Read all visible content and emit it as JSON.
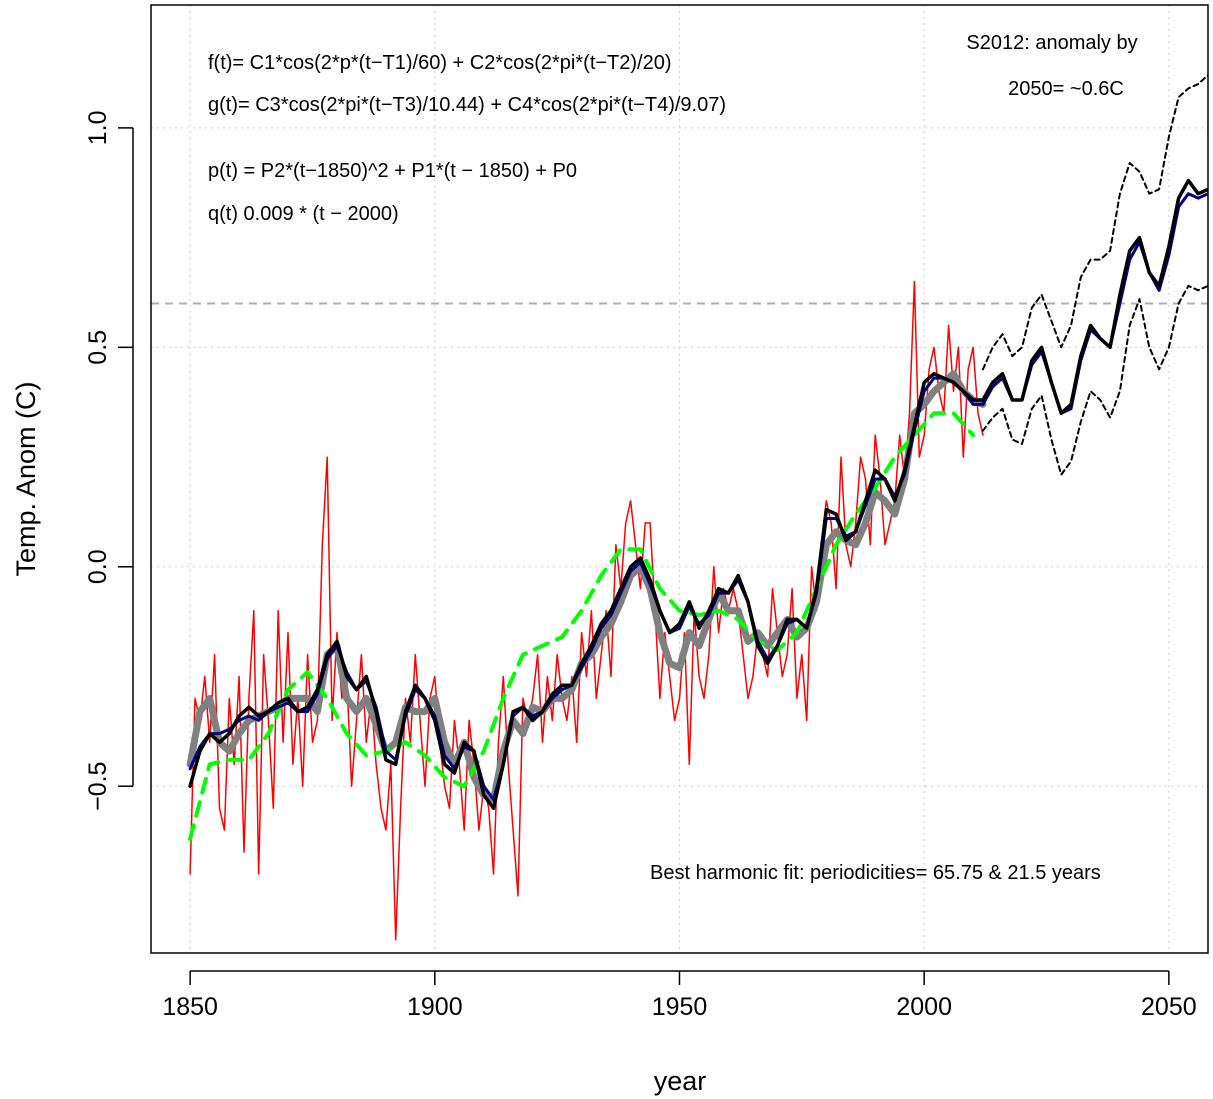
{
  "chart_data": {
    "type": "line",
    "xlabel": "year",
    "ylabel": "Temp. Anom (C)",
    "xlim": [
      1842,
      2058
    ],
    "ylim": [
      -0.88,
      1.28
    ],
    "xticks": [
      1850,
      1900,
      1950,
      2000,
      2050
    ],
    "yticks": [
      {
        "value": -0.5,
        "label": "−0.5"
      },
      {
        "value": 0,
        "label": "0.0"
      },
      {
        "value": 0.5,
        "label": "0.5"
      },
      {
        "value": 1,
        "label": "1.0"
      }
    ],
    "grid": true,
    "reference_line": 0.6,
    "annotations": [
      "f(t)= C1*cos(2*p*(t−T1)/60) + C2*cos(2*pi*(t−T2)/20)",
      "g(t)= C3*cos(2*pi*(t−T3)/10.44) + C4*cos(2*pi*(t−T4)/9.07)",
      "p(t) = P2*(t−1850)^2 + P1*(t − 1850) + P0",
      "q(t) 0.009 * (t − 2000)",
      "S2012: anomaly by",
      "2050= ~0.6C",
      "Best harmonic fit: periodicities= 65.75 & 21.5 years"
    ],
    "series": [
      {
        "color": "#ff0000",
        "dash": false,
        "x": [
          1850,
          1851,
          1852,
          1853,
          1854,
          1855,
          1856,
          1857,
          1858,
          1859,
          1860,
          1861,
          1862,
          1863,
          1864,
          1865,
          1866,
          1867,
          1868,
          1869,
          1870,
          1871,
          1872,
          1873,
          1874,
          1875,
          1876,
          1877,
          1878,
          1879,
          1880,
          1881,
          1882,
          1883,
          1884,
          1885,
          1886,
          1887,
          1888,
          1889,
          1890,
          1891,
          1892,
          1893,
          1894,
          1895,
          1896,
          1897,
          1898,
          1899,
          1900,
          1901,
          1902,
          1903,
          1904,
          1905,
          1906,
          1907,
          1908,
          1909,
          1910,
          1911,
          1912,
          1913,
          1914,
          1915,
          1916,
          1917,
          1918,
          1919,
          1920,
          1921,
          1922,
          1923,
          1924,
          1925,
          1926,
          1927,
          1928,
          1929,
          1930,
          1931,
          1932,
          1933,
          1934,
          1935,
          1936,
          1937,
          1938,
          1939,
          1940,
          1941,
          1942,
          1943,
          1944,
          1945,
          1946,
          1947,
          1948,
          1949,
          1950,
          1951,
          1952,
          1953,
          1954,
          1955,
          1956,
          1957,
          1958,
          1959,
          1960,
          1961,
          1962,
          1963,
          1964,
          1965,
          1966,
          1967,
          1968,
          1969,
          1970,
          1971,
          1972,
          1973,
          1974,
          1975,
          1976,
          1977,
          1978,
          1979,
          1980,
          1981,
          1982,
          1983,
          1984,
          1985,
          1986,
          1987,
          1988,
          1989,
          1990,
          1991,
          1992,
          1993,
          1994,
          1995,
          1996,
          1997,
          1998,
          1999,
          2000,
          2001,
          2002,
          2003,
          2004,
          2005,
          2006,
          2007,
          2008,
          2009,
          2010,
          2011,
          2012
        ],
        "values": [
          -0.7,
          -0.3,
          -0.35,
          -0.25,
          -0.4,
          -0.2,
          -0.55,
          -0.6,
          -0.3,
          -0.45,
          -0.25,
          -0.65,
          -0.3,
          -0.1,
          -0.7,
          -0.2,
          -0.35,
          -0.55,
          -0.1,
          -0.4,
          -0.15,
          -0.45,
          -0.3,
          -0.5,
          -0.2,
          -0.4,
          -0.35,
          0.05,
          0.25,
          -0.35,
          -0.15,
          -0.3,
          -0.25,
          -0.5,
          -0.35,
          -0.2,
          -0.4,
          -0.3,
          -0.45,
          -0.55,
          -0.6,
          -0.45,
          -0.85,
          -0.55,
          -0.3,
          -0.4,
          -0.2,
          -0.35,
          -0.5,
          -0.3,
          -0.25,
          -0.4,
          -0.5,
          -0.55,
          -0.35,
          -0.45,
          -0.6,
          -0.35,
          -0.45,
          -0.6,
          -0.5,
          -0.55,
          -0.7,
          -0.4,
          -0.25,
          -0.45,
          -0.6,
          -0.75,
          -0.3,
          -0.35,
          -0.3,
          -0.2,
          -0.4,
          -0.25,
          -0.35,
          -0.2,
          -0.3,
          -0.35,
          -0.25,
          -0.4,
          -0.15,
          -0.25,
          -0.1,
          -0.3,
          -0.2,
          -0.1,
          -0.25,
          0.05,
          -0.05,
          0.1,
          0.15,
          0.05,
          -0.05,
          0.1,
          0.1,
          -0.1,
          -0.3,
          -0.15,
          -0.25,
          -0.35,
          -0.3,
          -0.15,
          -0.45,
          -0.1,
          -0.25,
          -0.3,
          -0.2,
          0.0,
          -0.15,
          -0.05,
          -0.1,
          -0.05,
          -0.1,
          -0.2,
          -0.3,
          -0.25,
          -0.15,
          -0.2,
          -0.25,
          -0.05,
          -0.15,
          -0.25,
          -0.2,
          -0.05,
          -0.3,
          -0.2,
          -0.35,
          0.0,
          -0.1,
          0.05,
          0.15,
          0.1,
          -0.05,
          0.25,
          0.05,
          0.0,
          0.1,
          0.25,
          0.2,
          0.05,
          0.3,
          0.2,
          0.05,
          0.1,
          0.15,
          0.3,
          0.2,
          0.35,
          0.65,
          0.25,
          0.3,
          0.45,
          0.5,
          0.4,
          0.35,
          0.55,
          0.4,
          0.5,
          0.25,
          0.45,
          0.5,
          0.35,
          0.3
        ]
      },
      {
        "color": "#808080",
        "dash": false,
        "x": [
          1850,
          1852,
          1854,
          1856,
          1858,
          1860,
          1862,
          1864,
          1866,
          1868,
          1870,
          1872,
          1874,
          1876,
          1878,
          1880,
          1882,
          1884,
          1886,
          1888,
          1890,
          1892,
          1894,
          1896,
          1898,
          1900,
          1902,
          1904,
          1906,
          1908,
          1910,
          1912,
          1914,
          1916,
          1918,
          1920,
          1922,
          1924,
          1926,
          1928,
          1930,
          1932,
          1934,
          1936,
          1938,
          1940,
          1942,
          1944,
          1946,
          1948,
          1950,
          1952,
          1954,
          1956,
          1958,
          1960,
          1962,
          1964,
          1966,
          1968,
          1970,
          1972,
          1974,
          1976,
          1978,
          1980,
          1982,
          1984,
          1986,
          1988,
          1990,
          1992,
          1994,
          1996,
          1998,
          2000,
          2002,
          2004,
          2006,
          2008,
          2010,
          2012
        ],
        "values": [
          -0.45,
          -0.33,
          -0.3,
          -0.4,
          -0.42,
          -0.38,
          -0.35,
          -0.34,
          -0.33,
          -0.32,
          -0.3,
          -0.3,
          -0.3,
          -0.33,
          -0.2,
          -0.18,
          -0.3,
          -0.33,
          -0.3,
          -0.36,
          -0.42,
          -0.4,
          -0.32,
          -0.33,
          -0.33,
          -0.3,
          -0.4,
          -0.45,
          -0.4,
          -0.48,
          -0.52,
          -0.53,
          -0.42,
          -0.35,
          -0.38,
          -0.32,
          -0.33,
          -0.3,
          -0.3,
          -0.28,
          -0.22,
          -0.2,
          -0.16,
          -0.13,
          -0.08,
          -0.02,
          0.0,
          -0.05,
          -0.15,
          -0.22,
          -0.23,
          -0.15,
          -0.18,
          -0.12,
          -0.06,
          -0.1,
          -0.1,
          -0.17,
          -0.15,
          -0.18,
          -0.15,
          -0.12,
          -0.16,
          -0.14,
          -0.08,
          0.05,
          0.08,
          0.06,
          0.05,
          0.1,
          0.17,
          0.15,
          0.12,
          0.2,
          0.35,
          0.37,
          0.4,
          0.42,
          0.44,
          0.4,
          0.38,
          0.37
        ]
      },
      {
        "color": "#00ff00",
        "dash": true,
        "x": [
          1850,
          1854,
          1858,
          1862,
          1866,
          1870,
          1874,
          1878,
          1882,
          1886,
          1890,
          1894,
          1898,
          1902,
          1906,
          1910,
          1914,
          1918,
          1922,
          1926,
          1930,
          1934,
          1938,
          1942,
          1946,
          1950,
          1954,
          1958,
          1962,
          1966,
          1970,
          1974,
          1978,
          1982,
          1986,
          1990,
          1994,
          1998,
          2002,
          2006,
          2010
        ],
        "values": [
          -0.62,
          -0.45,
          -0.44,
          -0.44,
          -0.38,
          -0.28,
          -0.24,
          -0.3,
          -0.38,
          -0.43,
          -0.42,
          -0.4,
          -0.43,
          -0.48,
          -0.5,
          -0.42,
          -0.3,
          -0.2,
          -0.18,
          -0.16,
          -0.1,
          -0.02,
          0.04,
          0.04,
          -0.05,
          -0.1,
          -0.11,
          -0.1,
          -0.12,
          -0.17,
          -0.19,
          -0.15,
          -0.05,
          0.05,
          0.12,
          0.18,
          0.25,
          0.3,
          0.35,
          0.35,
          0.3
        ]
      },
      {
        "color": "#00008b",
        "dash": false,
        "x": [
          1850,
          1852,
          1854,
          1856,
          1858,
          1860,
          1862,
          1864,
          1866,
          1868,
          1870,
          1872,
          1874,
          1876,
          1878,
          1880,
          1882,
          1884,
          1886,
          1888,
          1890,
          1892,
          1894,
          1896,
          1898,
          1900,
          1902,
          1904,
          1906,
          1908,
          1910,
          1912,
          1914,
          1916,
          1918,
          1920,
          1922,
          1924,
          1926,
          1928,
          1930,
          1932,
          1934,
          1936,
          1938,
          1940,
          1942,
          1944,
          1946,
          1948,
          1950,
          1952,
          1954,
          1956,
          1958,
          1960,
          1962,
          1964,
          1966,
          1968,
          1970,
          1972,
          1974,
          1976,
          1978,
          1980,
          1982,
          1984,
          1986,
          1988,
          1990,
          1992,
          1994,
          1996,
          1998,
          2000,
          2002,
          2004,
          2006,
          2008,
          2010,
          2012,
          2014,
          2016,
          2018,
          2020,
          2022,
          2024,
          2026,
          2028,
          2030,
          2032,
          2034,
          2036,
          2038,
          2040,
          2042,
          2044,
          2046,
          2048,
          2050,
          2052,
          2054,
          2056,
          2058
        ],
        "values": [
          -0.46,
          -0.41,
          -0.38,
          -0.38,
          -0.37,
          -0.35,
          -0.34,
          -0.35,
          -0.33,
          -0.32,
          -0.31,
          -0.33,
          -0.33,
          -0.29,
          -0.21,
          -0.18,
          -0.24,
          -0.28,
          -0.26,
          -0.32,
          -0.42,
          -0.44,
          -0.34,
          -0.28,
          -0.3,
          -0.34,
          -0.43,
          -0.46,
          -0.41,
          -0.42,
          -0.5,
          -0.53,
          -0.45,
          -0.34,
          -0.32,
          -0.34,
          -0.33,
          -0.3,
          -0.28,
          -0.27,
          -0.23,
          -0.19,
          -0.14,
          -0.11,
          -0.06,
          -0.01,
          0.01,
          -0.04,
          -0.1,
          -0.15,
          -0.14,
          -0.09,
          -0.13,
          -0.11,
          -0.06,
          -0.06,
          -0.03,
          -0.08,
          -0.17,
          -0.21,
          -0.18,
          -0.13,
          -0.12,
          -0.14,
          -0.06,
          0.11,
          0.11,
          0.07,
          0.08,
          0.14,
          0.2,
          0.2,
          0.16,
          0.21,
          0.31,
          0.4,
          0.43,
          0.43,
          0.42,
          0.4,
          0.37,
          0.37,
          0.41,
          0.43,
          0.38,
          0.38,
          0.46,
          0.49,
          0.42,
          0.35,
          0.36,
          0.47,
          0.54,
          0.52,
          0.5,
          0.6,
          0.7,
          0.74,
          0.67,
          0.63,
          0.71,
          0.82,
          0.85,
          0.84,
          0.85
        ]
      },
      {
        "color": "#000000",
        "dash": false,
        "x": [
          1850,
          1852,
          1854,
          1856,
          1858,
          1860,
          1862,
          1864,
          1866,
          1868,
          1870,
          1872,
          1874,
          1876,
          1878,
          1880,
          1882,
          1884,
          1886,
          1888,
          1890,
          1892,
          1894,
          1896,
          1898,
          1900,
          1902,
          1904,
          1906,
          1908,
          1910,
          1912,
          1914,
          1916,
          1918,
          1920,
          1922,
          1924,
          1926,
          1928,
          1930,
          1932,
          1934,
          1936,
          1938,
          1940,
          1942,
          1944,
          1946,
          1948,
          1950,
          1952,
          1954,
          1956,
          1958,
          1960,
          1962,
          1964,
          1966,
          1968,
          1970,
          1972,
          1974,
          1976,
          1978,
          1980,
          1982,
          1984,
          1986,
          1988,
          1990,
          1992,
          1994,
          1996,
          1998,
          2000,
          2002,
          2004,
          2006,
          2008,
          2010,
          2012,
          2014,
          2016,
          2018,
          2020,
          2022,
          2024,
          2026,
          2028,
          2030,
          2032,
          2034,
          2036,
          2038,
          2040,
          2042,
          2044,
          2046,
          2048,
          2050,
          2052,
          2054,
          2056,
          2058
        ],
        "values": [
          -0.5,
          -0.42,
          -0.38,
          -0.4,
          -0.38,
          -0.34,
          -0.32,
          -0.34,
          -0.33,
          -0.31,
          -0.3,
          -0.33,
          -0.32,
          -0.28,
          -0.2,
          -0.17,
          -0.25,
          -0.28,
          -0.25,
          -0.33,
          -0.44,
          -0.45,
          -0.33,
          -0.27,
          -0.3,
          -0.35,
          -0.45,
          -0.47,
          -0.4,
          -0.42,
          -0.52,
          -0.55,
          -0.45,
          -0.33,
          -0.32,
          -0.35,
          -0.33,
          -0.29,
          -0.27,
          -0.27,
          -0.22,
          -0.18,
          -0.13,
          -0.1,
          -0.05,
          0.0,
          0.02,
          -0.03,
          -0.1,
          -0.15,
          -0.13,
          -0.08,
          -0.14,
          -0.1,
          -0.05,
          -0.06,
          -0.02,
          -0.08,
          -0.18,
          -0.22,
          -0.18,
          -0.12,
          -0.12,
          -0.14,
          -0.05,
          0.13,
          0.12,
          0.06,
          0.08,
          0.15,
          0.22,
          0.2,
          0.15,
          0.22,
          0.32,
          0.42,
          0.44,
          0.43,
          0.42,
          0.4,
          0.38,
          0.38,
          0.42,
          0.44,
          0.38,
          0.38,
          0.47,
          0.5,
          0.42,
          0.35,
          0.37,
          0.48,
          0.55,
          0.52,
          0.5,
          0.62,
          0.72,
          0.75,
          0.67,
          0.64,
          0.73,
          0.84,
          0.88,
          0.85,
          0.86
        ]
      },
      {
        "color": "#000000",
        "dash": true,
        "x": [
          2012,
          2014,
          2016,
          2018,
          2020,
          2022,
          2024,
          2026,
          2028,
          2030,
          2032,
          2034,
          2036,
          2038,
          2040,
          2042,
          2044,
          2046,
          2048,
          2050,
          2052,
          2054,
          2056,
          2058
        ],
        "values": [
          0.45,
          0.5,
          0.53,
          0.48,
          0.5,
          0.59,
          0.62,
          0.56,
          0.5,
          0.55,
          0.66,
          0.7,
          0.7,
          0.72,
          0.85,
          0.92,
          0.9,
          0.85,
          0.86,
          0.98,
          1.07,
          1.09,
          1.1,
          1.12
        ]
      },
      {
        "color": "#000000",
        "dash": true,
        "x": [
          2012,
          2014,
          2016,
          2018,
          2020,
          2022,
          2024,
          2026,
          2028,
          2030,
          2032,
          2034,
          2036,
          2038,
          2040,
          2042,
          2044,
          2046,
          2048,
          2050,
          2052,
          2054,
          2056,
          2058
        ],
        "values": [
          0.31,
          0.34,
          0.36,
          0.29,
          0.28,
          0.36,
          0.39,
          0.29,
          0.21,
          0.24,
          0.33,
          0.4,
          0.38,
          0.34,
          0.4,
          0.55,
          0.61,
          0.5,
          0.45,
          0.5,
          0.6,
          0.64,
          0.63,
          0.64
        ]
      }
    ]
  }
}
